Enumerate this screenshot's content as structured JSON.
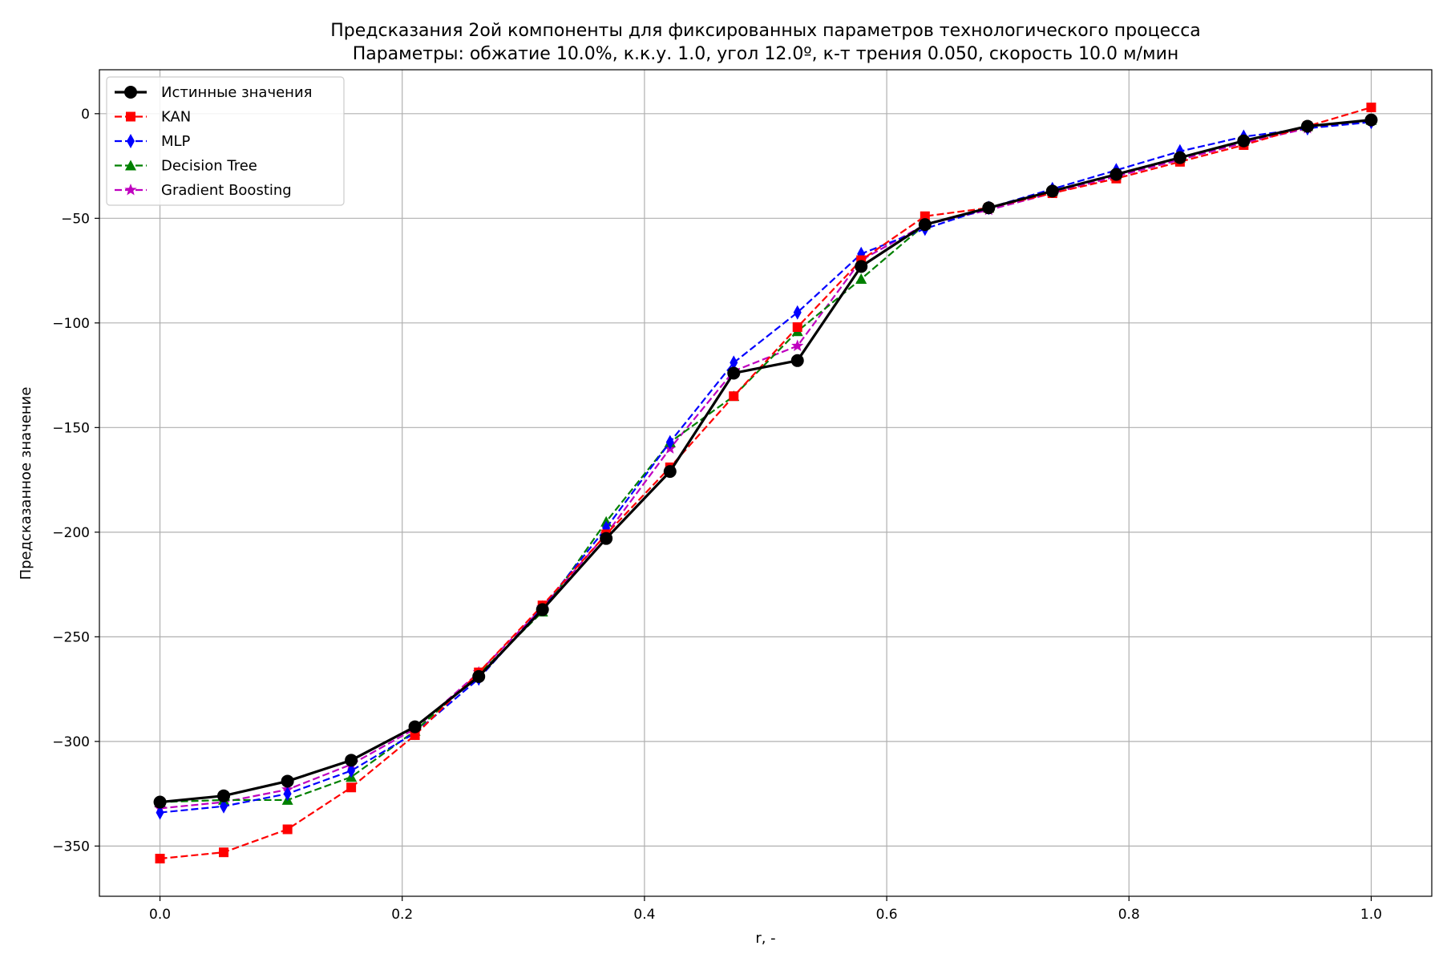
{
  "chart_data": {
    "type": "line",
    "title": "Предсказания 2ой компоненты для фиксированных параметров технологического процесса",
    "subtitle": "Параметры: обжатие 10.0%, к.к.у. 1.0, угол 12.0º, к-т трения 0.050, скорость 10.0 м/мин",
    "xlabel": "r, -",
    "ylabel": "Предсказанное значение",
    "xlim": [
      -0.05,
      1.05
    ],
    "ylim": [
      -374,
      21
    ],
    "xticks": [
      0.0,
      0.2,
      0.4,
      0.6,
      0.8,
      1.0
    ],
    "xtick_labels": [
      "0.0",
      "0.2",
      "0.4",
      "0.6",
      "0.8",
      "1.0"
    ],
    "yticks": [
      0,
      -50,
      -100,
      -150,
      -200,
      -250,
      -300,
      -350
    ],
    "ytick_labels": [
      "0",
      "−50",
      "−100",
      "−150",
      "−200",
      "−250",
      "−300",
      "−350"
    ],
    "grid": true,
    "legend_position": "top-left",
    "x": [
      0.0,
      0.0526,
      0.1053,
      0.1579,
      0.2105,
      0.2632,
      0.3158,
      0.3684,
      0.4211,
      0.4737,
      0.5263,
      0.5789,
      0.6316,
      0.6842,
      0.7368,
      0.7895,
      0.8421,
      0.8947,
      0.9474,
      1.0
    ],
    "series": [
      {
        "name": "Истинные значения",
        "color": "#000000",
        "marker": "circle",
        "dashed": false,
        "values": [
          -329,
          -326,
          -319,
          -309,
          -293,
          -269,
          -237,
          -203,
          -171,
          -124,
          -118,
          -73,
          -53,
          -45,
          -37,
          -29,
          -21,
          -13,
          -6,
          -3
        ]
      },
      {
        "name": "KAN",
        "color": "#ff0000",
        "marker": "square",
        "dashed": true,
        "values": [
          -356,
          -353,
          -342,
          -322,
          -297,
          -267,
          -235,
          -201,
          -169,
          -135,
          -102,
          -70,
          -49,
          -45,
          -38,
          -31,
          -23,
          -15,
          -6,
          3
        ]
      },
      {
        "name": "MLP",
        "color": "#0000ff",
        "marker": "thin-diamond",
        "dashed": true,
        "values": [
          -334,
          -331,
          -325,
          -314,
          -296,
          -270,
          -236,
          -198,
          -157,
          -119,
          -95,
          -67,
          -55,
          -45,
          -36,
          -27,
          -18,
          -11,
          -7,
          -4
        ]
      },
      {
        "name": "Decision Tree",
        "color": "#008000",
        "marker": "triangle-up",
        "dashed": true,
        "values": [
          -329,
          -328,
          -328,
          -317,
          -295,
          -268,
          -238,
          -195,
          -157,
          -135,
          -104,
          -79,
          -53,
          -45,
          -37,
          -29,
          -21,
          -13,
          -6,
          -3
        ]
      },
      {
        "name": "Gradient Boosting",
        "color": "#bf00bf",
        "marker": "star",
        "dashed": true,
        "values": [
          -332,
          -329,
          -323,
          -311,
          -294,
          -267,
          -236,
          -201,
          -160,
          -123,
          -111,
          -70,
          -53,
          -46,
          -38,
          -30,
          -22,
          -14,
          -7,
          -3
        ]
      }
    ]
  }
}
